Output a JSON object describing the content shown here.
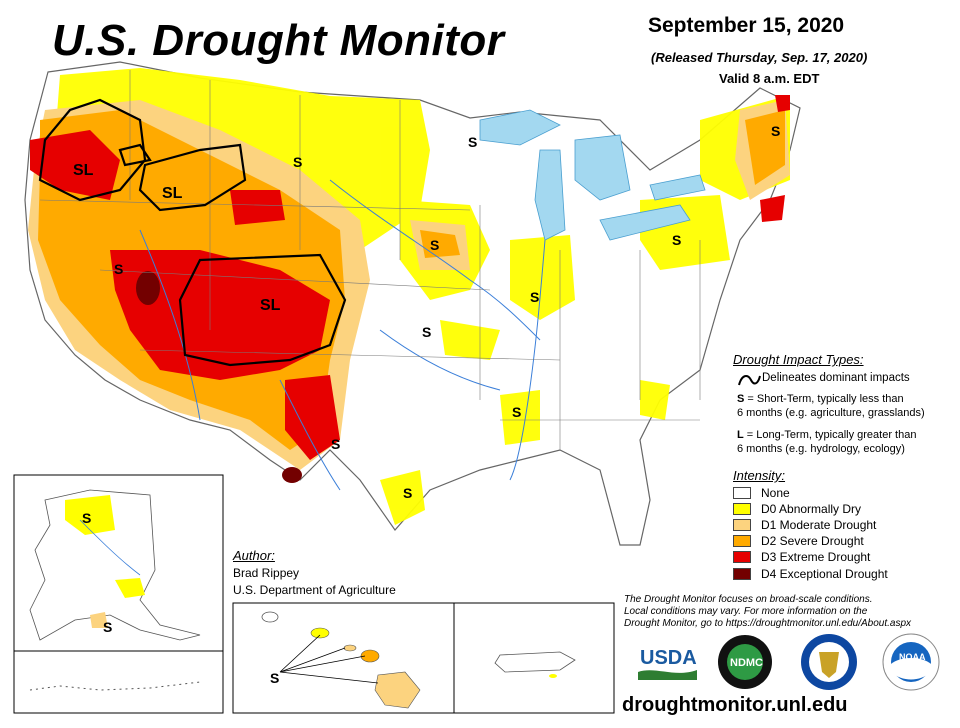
{
  "header": {
    "title": "U.S. Drought Monitor",
    "date": "September 15, 2020",
    "released": "(Released Thursday, Sep. 17, 2020)",
    "valid": "Valid 8 a.m. EDT"
  },
  "map_labels": {
    "sl": "SL",
    "s": "S"
  },
  "impact_types": {
    "heading": "Drought Impact Types:",
    "line_label": "Delineates dominant impacts",
    "short_term_key": "S",
    "short_term_text": "= Short-Term, typically less than",
    "short_term_text2": "6 months (e.g. agriculture, grasslands)",
    "long_term_key": "L",
    "long_term_text": "= Long-Term, typically greater than",
    "long_term_text2": "6 months (e.g. hydrology, ecology)"
  },
  "intensity": {
    "heading": "Intensity:",
    "levels": [
      {
        "label": "None",
        "color": "#ffffff"
      },
      {
        "label": "D0 Abnormally Dry",
        "color": "#ffff00"
      },
      {
        "label": "D1 Moderate Drought",
        "color": "#fcd37f"
      },
      {
        "label": "D2 Severe Drought",
        "color": "#ffaa00"
      },
      {
        "label": "D3 Extreme Drought",
        "color": "#e60000"
      },
      {
        "label": "D4 Exceptional Drought",
        "color": "#730000"
      }
    ]
  },
  "author": {
    "heading": "Author:",
    "name": "Brad Rippey",
    "org": "U.S. Department of Agriculture"
  },
  "note": {
    "line1": "The Drought Monitor focuses on broad-scale conditions.",
    "line2": "Local conditions may vary. For more information on the",
    "line3": "Drought Monitor, go to https://droughtmonitor.unl.edu/About.aspx"
  },
  "logos": {
    "usda": "USDA",
    "ndmc": "NDMC",
    "noaa": "NOAA"
  },
  "website": "droughtmonitor.unl.edu"
}
